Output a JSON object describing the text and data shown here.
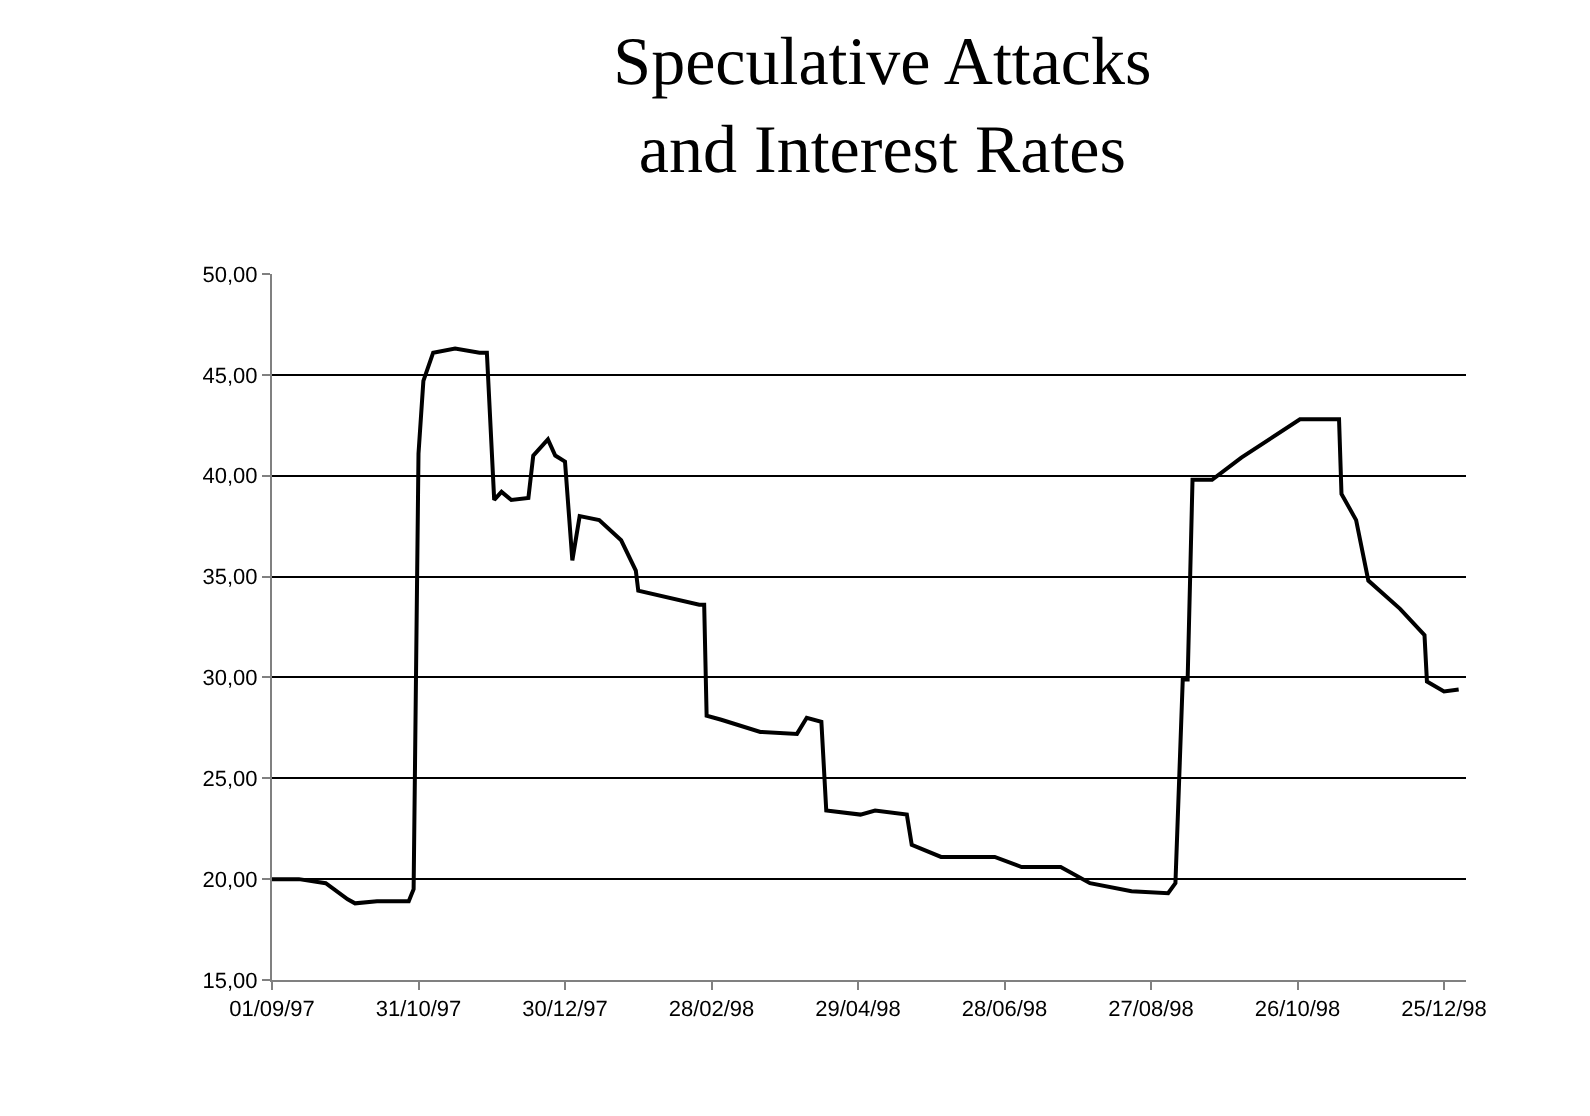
{
  "chart_data": {
    "type": "line",
    "title": "Speculative Attacks\nand Interest Rates",
    "x": [
      "1997-09-01",
      "1997-09-12",
      "1997-09-23",
      "1997-10-02",
      "1997-10-05",
      "1997-10-14",
      "1997-10-23",
      "1997-10-27",
      "1997-10-29",
      "1997-10-31",
      "1997-11-02",
      "1997-11-06",
      "1997-11-15",
      "1997-11-25",
      "1997-11-28",
      "1997-12-01",
      "1997-12-04",
      "1997-12-08",
      "1997-12-15",
      "1997-12-17",
      "1997-12-23",
      "1997-12-26",
      "1997-12-30",
      "1998-01-02",
      "1998-01-05",
      "1998-01-13",
      "1998-01-22",
      "1998-01-28",
      "1998-01-29",
      "1998-02-23",
      "1998-02-25",
      "1998-02-26",
      "1998-03-04",
      "1998-03-20",
      "1998-04-04",
      "1998-04-08",
      "1998-04-14",
      "1998-04-16",
      "1998-04-30",
      "1998-05-06",
      "1998-05-19",
      "1998-05-21",
      "1998-06-02",
      "1998-06-24",
      "1998-07-05",
      "1998-07-21",
      "1998-08-02",
      "1998-08-19",
      "1998-09-03",
      "1998-09-06",
      "1998-09-09",
      "1998-09-11",
      "1998-09-13",
      "1998-09-21",
      "1998-10-03",
      "1998-10-27",
      "1998-11-12",
      "1998-11-13",
      "1998-11-19",
      "1998-11-24",
      "1998-12-07",
      "1998-12-17",
      "1998-12-18",
      "1998-12-25",
      "1998-12-31"
    ],
    "series": [
      {
        "color": "#000000",
        "values": [
          20.0,
          20.0,
          19.8,
          19.0,
          18.8,
          18.9,
          18.9,
          18.9,
          19.5,
          41.1,
          44.7,
          46.1,
          46.3,
          46.1,
          46.1,
          38.8,
          39.2,
          38.8,
          38.9,
          41.0,
          41.8,
          41.0,
          40.7,
          35.8,
          38.0,
          37.8,
          36.8,
          35.3,
          34.3,
          33.6,
          33.6,
          28.1,
          27.9,
          27.3,
          27.2,
          28.0,
          27.8,
          23.4,
          23.2,
          23.4,
          23.2,
          21.7,
          21.1,
          21.1,
          20.6,
          20.6,
          19.8,
          19.4,
          19.3,
          19.8,
          29.9,
          29.9,
          39.8,
          39.8,
          40.9,
          42.8,
          42.8,
          39.1,
          37.8,
          34.8,
          33.4,
          32.1,
          29.8,
          29.3,
          29.4
        ]
      }
    ],
    "xlim": [
      "1997-09-01",
      "1999-01-03"
    ],
    "xticks": [
      {
        "value": "1997-09-01",
        "label": "01/09/97"
      },
      {
        "value": "1997-10-31",
        "label": "31/10/97"
      },
      {
        "value": "1997-12-30",
        "label": "30/12/97"
      },
      {
        "value": "1998-02-28",
        "label": "28/02/98"
      },
      {
        "value": "1998-04-29",
        "label": "29/04/98"
      },
      {
        "value": "1998-06-28",
        "label": "28/06/98"
      },
      {
        "value": "1998-08-27",
        "label": "27/08/98"
      },
      {
        "value": "1998-10-26",
        "label": "26/10/98"
      },
      {
        "value": "1998-12-25",
        "label": "25/12/98"
      }
    ],
    "ylim": [
      15,
      50
    ],
    "yticks": [
      {
        "value": 15,
        "label": "15,00"
      },
      {
        "value": 20,
        "label": "20,00"
      },
      {
        "value": 25,
        "label": "25,00"
      },
      {
        "value": 30,
        "label": "30,00"
      },
      {
        "value": 35,
        "label": "35,00"
      },
      {
        "value": 40,
        "label": "40,00"
      },
      {
        "value": 45,
        "label": "45,00"
      },
      {
        "value": 50,
        "label": "50,00"
      }
    ],
    "grid": "y",
    "marker": "none",
    "line_style": "solid"
  }
}
